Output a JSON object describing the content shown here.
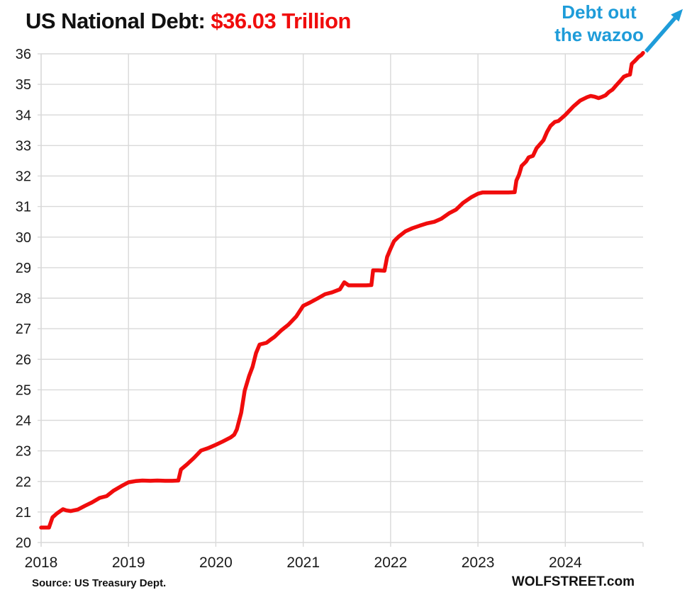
{
  "header": {
    "title_prefix": "US National Debt: ",
    "title_value": "$36.03 Trillion",
    "title_value_color": "#F00C0C"
  },
  "annotation": {
    "line1": "Debt out",
    "line2": "the wazoo",
    "color": "#1E9CD9"
  },
  "footer": {
    "source": "Source: US Treasury Dept.",
    "brand": "WOLFSTREET.com"
  },
  "chart_data": {
    "type": "line",
    "title": "US National Debt: $36.03 Trillion",
    "xlabel": "",
    "ylabel": "",
    "xlim": [
      2018,
      2024.89
    ],
    "ylim": [
      20,
      36
    ],
    "x_ticks": [
      2018,
      2019,
      2020,
      2021,
      2022,
      2023,
      2024
    ],
    "y_ticks": [
      20,
      21,
      22,
      23,
      24,
      25,
      26,
      27,
      28,
      29,
      30,
      31,
      32,
      33,
      34,
      35,
      36
    ],
    "grid": true,
    "grid_color": "#D9D9D9",
    "axis_text_color": "#1a1a1a",
    "series": [
      {
        "name": "US national debt ($ trillions)",
        "color": "#F00C0C",
        "points": [
          [
            2018.0,
            20.49
          ],
          [
            2018.09,
            20.49
          ],
          [
            2018.13,
            20.82
          ],
          [
            2018.18,
            20.95
          ],
          [
            2018.25,
            21.09
          ],
          [
            2018.29,
            21.05
          ],
          [
            2018.34,
            21.03
          ],
          [
            2018.42,
            21.08
          ],
          [
            2018.5,
            21.2
          ],
          [
            2018.58,
            21.31
          ],
          [
            2018.67,
            21.46
          ],
          [
            2018.75,
            21.52
          ],
          [
            2018.83,
            21.7
          ],
          [
            2018.92,
            21.85
          ],
          [
            2019.0,
            21.97
          ],
          [
            2019.08,
            22.01
          ],
          [
            2019.16,
            22.03
          ],
          [
            2019.25,
            22.02
          ],
          [
            2019.33,
            22.03
          ],
          [
            2019.42,
            22.02
          ],
          [
            2019.5,
            22.02
          ],
          [
            2019.57,
            22.03
          ],
          [
            2019.6,
            22.39
          ],
          [
            2019.67,
            22.56
          ],
          [
            2019.75,
            22.77
          ],
          [
            2019.83,
            23.01
          ],
          [
            2019.92,
            23.1
          ],
          [
            2020.0,
            23.2
          ],
          [
            2020.08,
            23.31
          ],
          [
            2020.17,
            23.44
          ],
          [
            2020.21,
            23.53
          ],
          [
            2020.24,
            23.7
          ],
          [
            2020.29,
            24.25
          ],
          [
            2020.33,
            24.97
          ],
          [
            2020.38,
            25.45
          ],
          [
            2020.42,
            25.75
          ],
          [
            2020.46,
            26.2
          ],
          [
            2020.5,
            26.48
          ],
          [
            2020.58,
            26.54
          ],
          [
            2020.63,
            26.65
          ],
          [
            2020.67,
            26.73
          ],
          [
            2020.75,
            26.95
          ],
          [
            2020.83,
            27.13
          ],
          [
            2020.92,
            27.4
          ],
          [
            2021.0,
            27.75
          ],
          [
            2021.08,
            27.86
          ],
          [
            2021.17,
            28.0
          ],
          [
            2021.25,
            28.13
          ],
          [
            2021.33,
            28.19
          ],
          [
            2021.42,
            28.29
          ],
          [
            2021.47,
            28.52
          ],
          [
            2021.52,
            28.42
          ],
          [
            2021.62,
            28.42
          ],
          [
            2021.72,
            28.42
          ],
          [
            2021.78,
            28.43
          ],
          [
            2021.8,
            28.91
          ],
          [
            2021.86,
            28.91
          ],
          [
            2021.93,
            28.9
          ],
          [
            2021.96,
            29.35
          ],
          [
            2022.0,
            29.62
          ],
          [
            2022.04,
            29.87
          ],
          [
            2022.09,
            30.01
          ],
          [
            2022.17,
            30.19
          ],
          [
            2022.25,
            30.29
          ],
          [
            2022.33,
            30.37
          ],
          [
            2022.42,
            30.45
          ],
          [
            2022.5,
            30.5
          ],
          [
            2022.58,
            30.6
          ],
          [
            2022.67,
            30.78
          ],
          [
            2022.75,
            30.9
          ],
          [
            2022.83,
            31.12
          ],
          [
            2022.92,
            31.3
          ],
          [
            2023.0,
            31.42
          ],
          [
            2023.05,
            31.46
          ],
          [
            2023.15,
            31.46
          ],
          [
            2023.25,
            31.46
          ],
          [
            2023.35,
            31.46
          ],
          [
            2023.42,
            31.47
          ],
          [
            2023.44,
            31.85
          ],
          [
            2023.47,
            32.04
          ],
          [
            2023.5,
            32.33
          ],
          [
            2023.55,
            32.47
          ],
          [
            2023.58,
            32.61
          ],
          [
            2023.63,
            32.66
          ],
          [
            2023.67,
            32.91
          ],
          [
            2023.75,
            33.17
          ],
          [
            2023.79,
            33.44
          ],
          [
            2023.83,
            33.64
          ],
          [
            2023.88,
            33.77
          ],
          [
            2023.92,
            33.8
          ],
          [
            2024.0,
            34.0
          ],
          [
            2024.05,
            34.15
          ],
          [
            2024.09,
            34.27
          ],
          [
            2024.17,
            34.47
          ],
          [
            2024.25,
            34.58
          ],
          [
            2024.29,
            34.62
          ],
          [
            2024.33,
            34.6
          ],
          [
            2024.38,
            34.55
          ],
          [
            2024.42,
            34.59
          ],
          [
            2024.46,
            34.64
          ],
          [
            2024.5,
            34.75
          ],
          [
            2024.54,
            34.83
          ],
          [
            2024.58,
            34.96
          ],
          [
            2024.63,
            35.12
          ],
          [
            2024.67,
            35.25
          ],
          [
            2024.71,
            35.3
          ],
          [
            2024.74,
            35.32
          ],
          [
            2024.76,
            35.67
          ],
          [
            2024.8,
            35.78
          ],
          [
            2024.84,
            35.9
          ],
          [
            2024.87,
            35.96
          ],
          [
            2024.89,
            36.03
          ]
        ]
      }
    ],
    "legend": "none"
  }
}
